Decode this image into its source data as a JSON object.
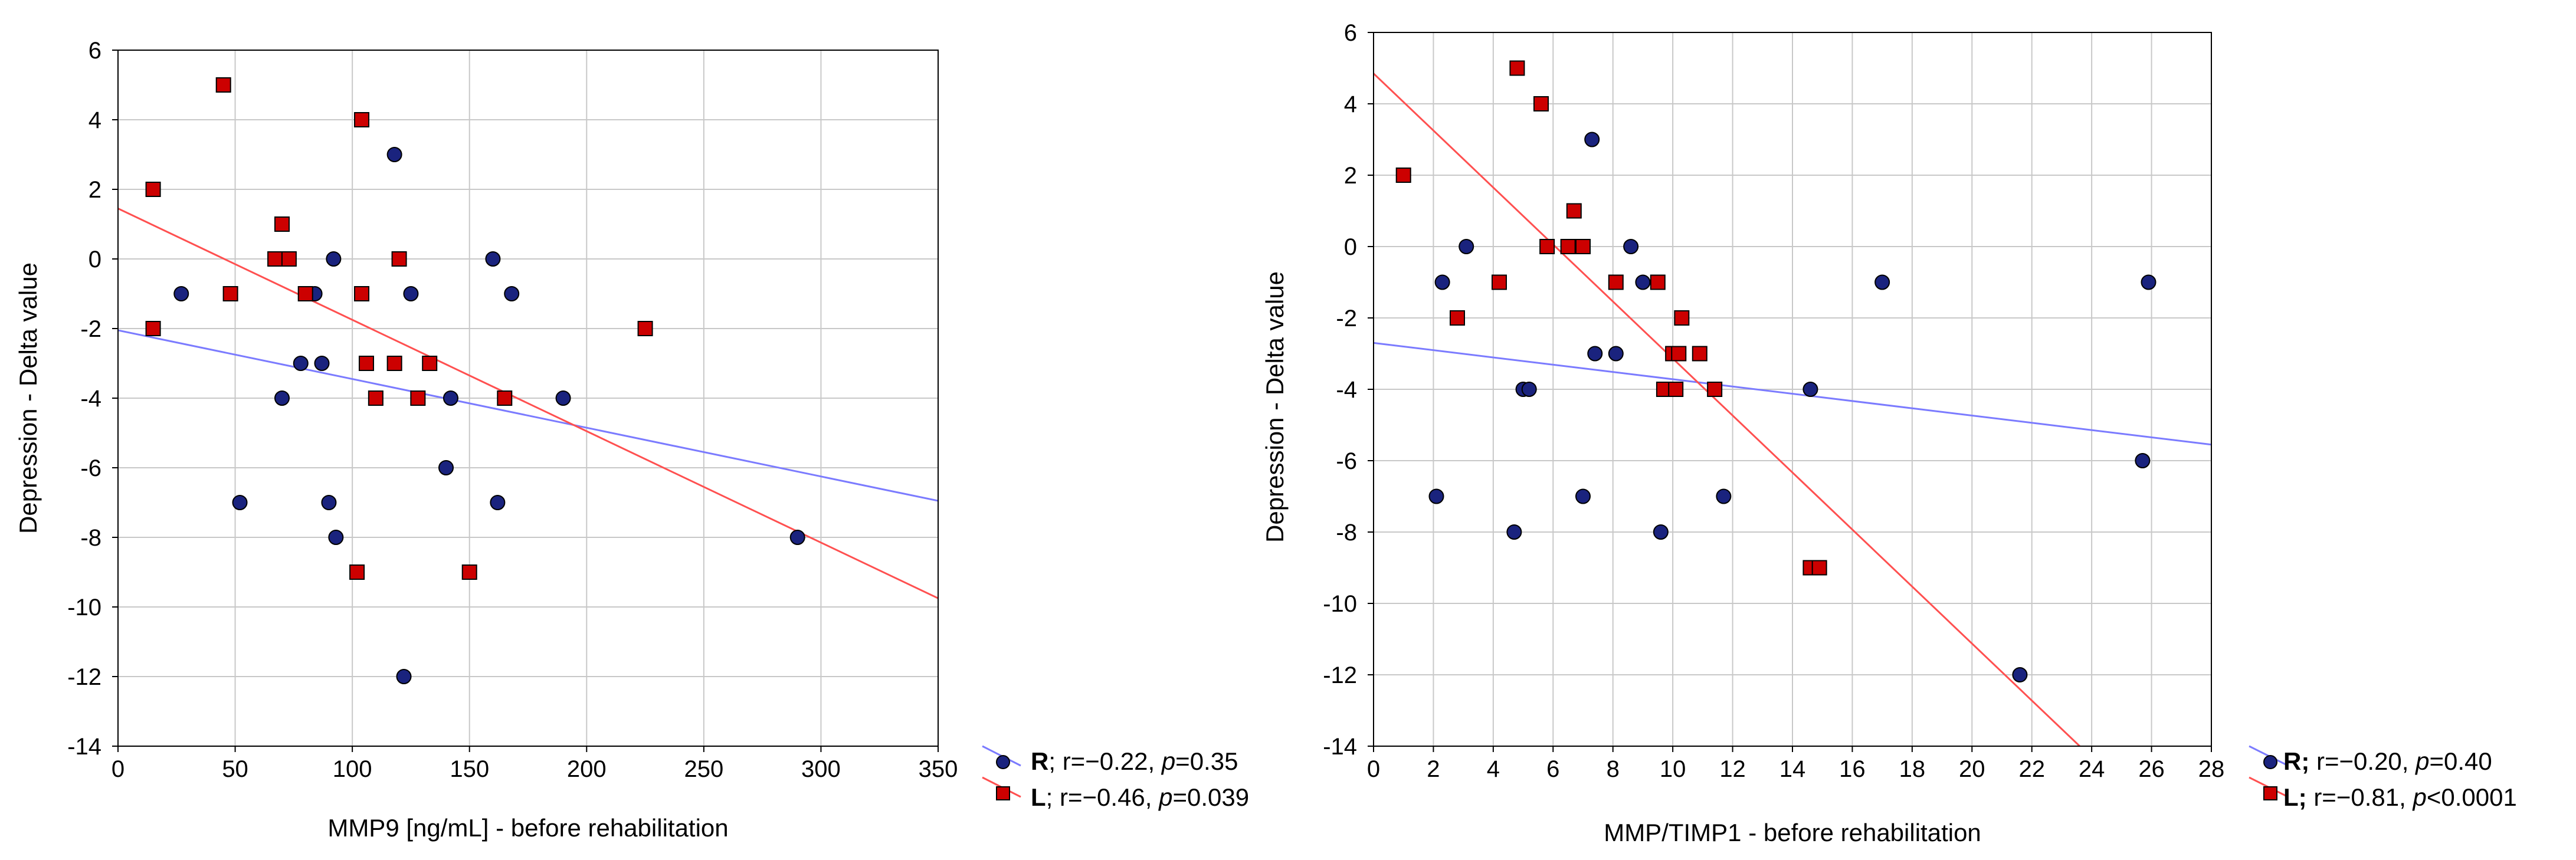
{
  "chart_data": [
    {
      "type": "scatter",
      "title": "",
      "xlabel": "MMP9 [ng/mL] - before rehabilitation",
      "ylabel": "Depression - Delta value",
      "xlim": [
        0,
        350
      ],
      "ylim": [
        -14,
        6
      ],
      "xticks": [
        0,
        50,
        100,
        150,
        200,
        250,
        300,
        350
      ],
      "yticks": [
        -14,
        -12,
        -10,
        -8,
        -6,
        -4,
        -2,
        0,
        2,
        4,
        6
      ],
      "grid": true,
      "legend_position": "bottom-right-outside",
      "series": [
        {
          "name": "R",
          "marker": "circle",
          "color": "#1a237e",
          "line_color": "#7b7bff",
          "points": [
            [
              27,
              -1
            ],
            [
              52,
              -7
            ],
            [
              70,
              -4
            ],
            [
              72,
              0
            ],
            [
              78,
              -3
            ],
            [
              84,
              -1
            ],
            [
              87,
              -3
            ],
            [
              90,
              -7
            ],
            [
              92,
              0
            ],
            [
              93,
              -8
            ],
            [
              118,
              3
            ],
            [
              122,
              -12
            ],
            [
              125,
              -1
            ],
            [
              140,
              -6
            ],
            [
              142,
              -4
            ],
            [
              160,
              0
            ],
            [
              162,
              -7
            ],
            [
              168,
              -1
            ],
            [
              190,
              -4
            ],
            [
              290,
              -8
            ]
          ],
          "fit": [
            [
              0,
              -2.05
            ],
            [
              350,
              -6.95
            ]
          ],
          "stats": {
            "label": "R",
            "r": "r=−0.22, ",
            "p_sym": "p",
            "p_val": "=0.35"
          }
        },
        {
          "name": "L",
          "marker": "square",
          "color": "#cc0000",
          "line_color": "#ff5050",
          "points": [
            [
              15,
              2
            ],
            [
              15,
              -2
            ],
            [
              45,
              5
            ],
            [
              48,
              -1
            ],
            [
              67,
              0
            ],
            [
              70,
              1
            ],
            [
              73,
              0
            ],
            [
              80,
              -1
            ],
            [
              102,
              -9
            ],
            [
              104,
              4
            ],
            [
              104,
              -1
            ],
            [
              106,
              -3
            ],
            [
              110,
              -4
            ],
            [
              118,
              -3
            ],
            [
              120,
              0
            ],
            [
              128,
              -4
            ],
            [
              133,
              -3
            ],
            [
              150,
              -9
            ],
            [
              165,
              -4
            ],
            [
              225,
              -2
            ]
          ],
          "fit": [
            [
              0,
              1.45
            ],
            [
              350,
              -9.75
            ]
          ],
          "stats": {
            "label": "L",
            "r": "r=−0.46, ",
            "p_sym": "p",
            "p_val": "=0.039"
          }
        }
      ]
    },
    {
      "type": "scatter",
      "title": "",
      "xlabel": "MMP/TIMP1 - before rehabilitation",
      "ylabel": "Depression - Delta value",
      "xlim": [
        0,
        28
      ],
      "ylim": [
        -14,
        6
      ],
      "xticks": [
        0,
        2,
        4,
        6,
        8,
        10,
        12,
        14,
        16,
        18,
        20,
        22,
        24,
        26,
        28
      ],
      "yticks": [
        -14,
        -12,
        -10,
        -8,
        -6,
        -4,
        -2,
        0,
        2,
        4,
        6
      ],
      "grid": true,
      "legend_position": "bottom-right-outside",
      "series": [
        {
          "name": "R",
          "marker": "circle",
          "color": "#1a237e",
          "line_color": "#7b7bff",
          "points": [
            [
              2.1,
              -7
            ],
            [
              2.3,
              -1
            ],
            [
              3.1,
              0
            ],
            [
              4.7,
              -8
            ],
            [
              5.0,
              -4
            ],
            [
              5.2,
              -4
            ],
            [
              7.0,
              -7
            ],
            [
              7.3,
              3
            ],
            [
              7.4,
              -3
            ],
            [
              8.1,
              -3
            ],
            [
              8.6,
              0
            ],
            [
              9.0,
              -1
            ],
            [
              9.6,
              -8
            ],
            [
              11.7,
              -7
            ],
            [
              14.6,
              -4
            ],
            [
              17.0,
              -1
            ],
            [
              21.6,
              -12
            ],
            [
              25.7,
              -6
            ],
            [
              25.9,
              -1
            ]
          ],
          "fit": [
            [
              0,
              -2.7
            ],
            [
              28,
              -5.55
            ]
          ],
          "stats": {
            "label": "R;",
            "r": " r=−0.20, ",
            "p_sym": "p",
            "p_val": "=0.40"
          }
        },
        {
          "name": "L",
          "marker": "square",
          "color": "#cc0000",
          "line_color": "#ff5050",
          "points": [
            [
              1.0,
              2
            ],
            [
              2.8,
              -2
            ],
            [
              4.2,
              -1
            ],
            [
              4.8,
              5
            ],
            [
              5.6,
              4
            ],
            [
              5.8,
              0
            ],
            [
              6.5,
              0
            ],
            [
              6.7,
              1
            ],
            [
              7.0,
              0
            ],
            [
              8.1,
              -1
            ],
            [
              9.5,
              -1
            ],
            [
              9.7,
              -4
            ],
            [
              10.0,
              -3
            ],
            [
              10.1,
              -4
            ],
            [
              10.2,
              -3
            ],
            [
              10.3,
              -2
            ],
            [
              10.9,
              -3
            ],
            [
              11.4,
              -4
            ],
            [
              14.6,
              -9
            ],
            [
              14.9,
              -9
            ]
          ],
          "fit": [
            [
              0,
              4.85
            ],
            [
              23.6,
              -14
            ]
          ],
          "stats": {
            "label": "L;",
            "r": " r=−0.81, ",
            "p_sym": "p",
            "p_val": "<0.0001"
          }
        }
      ]
    }
  ]
}
